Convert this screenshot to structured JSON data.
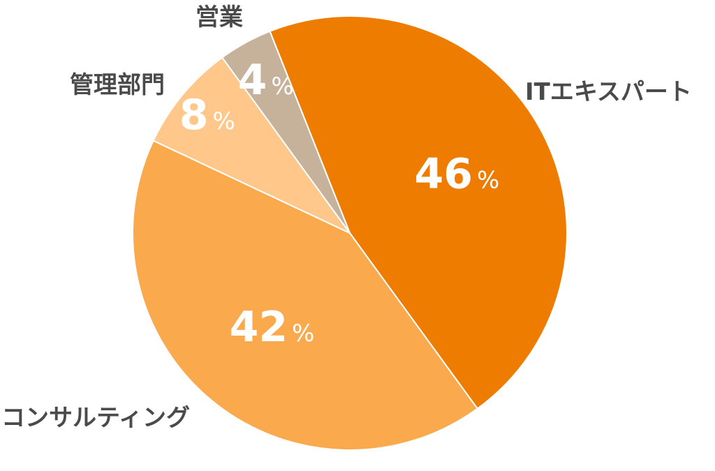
{
  "chart_data": {
    "type": "pie",
    "unit": "%",
    "slices": [
      {
        "label": "ITエキスパート",
        "value": 46,
        "color": "#EE7C00"
      },
      {
        "label": "コンサルティング",
        "value": 42,
        "color": "#FBA94D"
      },
      {
        "label": "管理部門",
        "value": 8,
        "color": "#FFC78A"
      },
      {
        "label": "営業",
        "value": 4,
        "color": "#C6B19B"
      }
    ]
  }
}
